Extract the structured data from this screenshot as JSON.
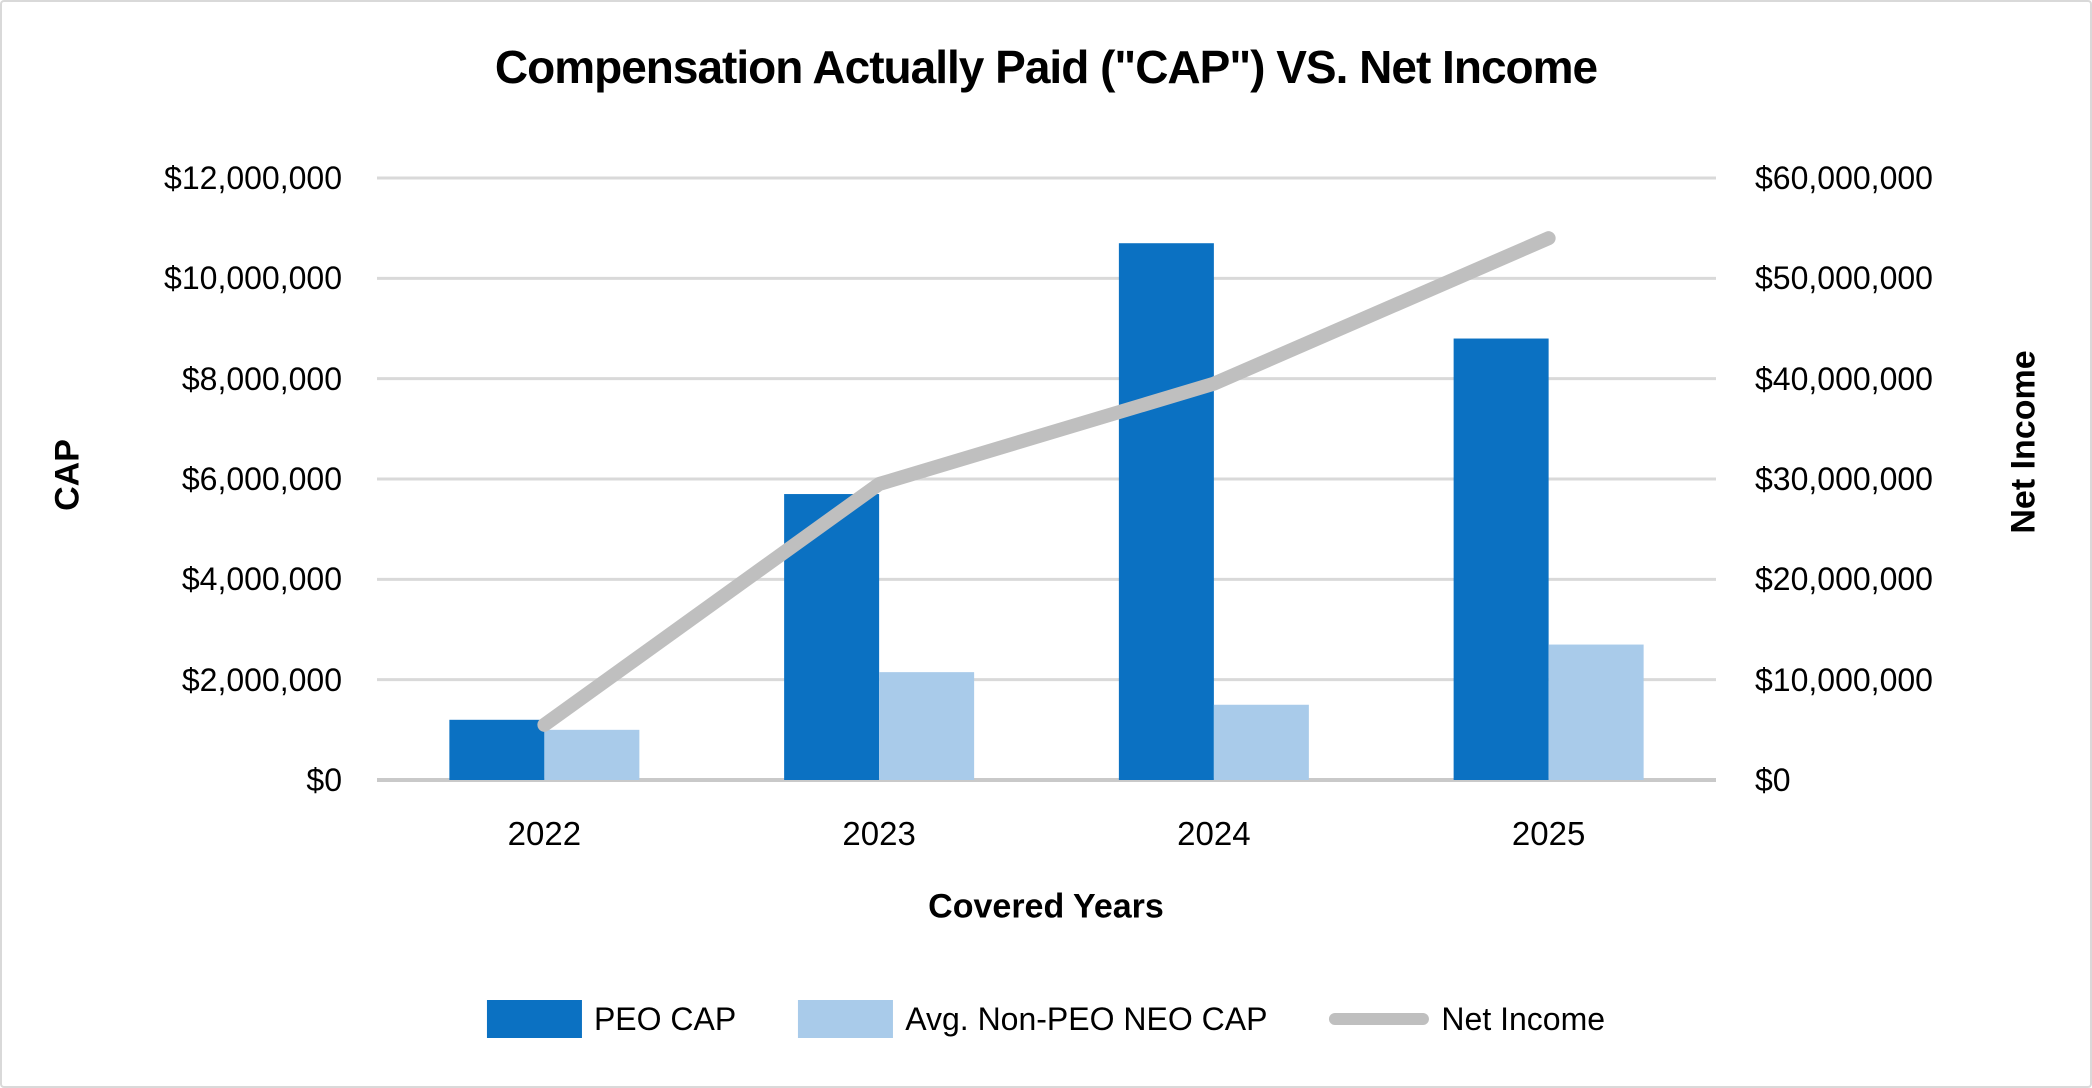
{
  "title": "Compensation Actually Paid (\"CAP\") VS. Net Income",
  "chart_data": {
    "type": "combo-bar-line",
    "categories": [
      "2022",
      "2023",
      "2024",
      "2025"
    ],
    "series": [
      {
        "name": "PEO CAP",
        "type": "bar",
        "axis": "left",
        "color": "#0B71C2",
        "values": [
          1200000,
          5700000,
          10700000,
          8800000
        ]
      },
      {
        "name": "Avg. Non-PEO NEO CAP",
        "type": "bar",
        "axis": "left",
        "color": "#A9CBEA",
        "values": [
          1000000,
          2150000,
          1500000,
          2700000
        ]
      },
      {
        "name": "Net Income",
        "type": "line",
        "axis": "right",
        "color": "#BFBFBF",
        "values": [
          5500000,
          29500000,
          39500000,
          54000000
        ]
      }
    ],
    "left_axis": {
      "title": "CAP",
      "min": 0,
      "max": 12000000,
      "ticks": [
        "$12,000,000",
        "$10,000,000",
        "$8,000,000",
        "$6,000,000",
        "$4,000,000",
        "$2,000,000",
        "$0"
      ]
    },
    "right_axis": {
      "title": "Net Income",
      "min": 0,
      "max": 60000000,
      "ticks": [
        "$60,000,000",
        "$50,000,000",
        "$40,000,000",
        "$30,000,000",
        "$20,000,000",
        "$10,000,000",
        "$0"
      ]
    },
    "x_axis": {
      "title": "Covered Years"
    },
    "grid": true,
    "legend_position": "bottom"
  },
  "colors": {
    "gridline": "#D9D9D9",
    "axis_line": "#C9C9C9",
    "border": "#D9D9D9",
    "background": "#FFFFFF",
    "text": "#000000"
  }
}
